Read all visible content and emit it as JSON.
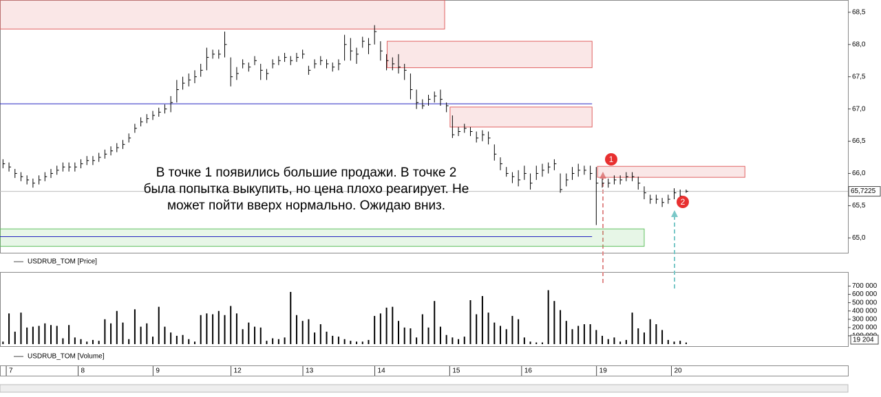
{
  "chart_data": [
    {
      "type": "hlc",
      "legend": "USDRUB_TOM [Price]",
      "xlim": [
        -0.5,
        141
      ],
      "ylim": [
        64.77,
        68.69
      ],
      "yticks": [
        {
          "value": 65.0,
          "label": "65,0"
        },
        {
          "value": 65.5,
          "label": "65,5"
        },
        {
          "value": 66.0,
          "label": "66,0"
        },
        {
          "value": 66.5,
          "label": "66,5"
        },
        {
          "value": 67.0,
          "label": "67,0"
        },
        {
          "value": 67.5,
          "label": "67,5"
        },
        {
          "value": 68.0,
          "label": "68,0"
        },
        {
          "value": 68.5,
          "label": "68,5"
        }
      ],
      "color": "#000000",
      "close": [
        66.15,
        66.1,
        66.0,
        65.95,
        65.9,
        65.85,
        65.9,
        65.95,
        66.0,
        66.05,
        66.1,
        66.1,
        66.1,
        66.15,
        66.2,
        66.2,
        66.25,
        66.3,
        66.35,
        66.4,
        66.45,
        66.55,
        66.7,
        66.8,
        66.85,
        66.9,
        66.95,
        67.0,
        67.1,
        67.3,
        67.4,
        67.45,
        67.5,
        67.6,
        67.8,
        67.85,
        67.85,
        68.0,
        67.5,
        67.55,
        67.7,
        67.65,
        67.75,
        67.6,
        67.55,
        67.7,
        67.75,
        67.8,
        67.75,
        67.8,
        67.85,
        67.6,
        67.7,
        67.75,
        67.7,
        67.65,
        67.7,
        68.0,
        67.9,
        67.85,
        68.05,
        68.0,
        68.2,
        67.9,
        67.75,
        67.7,
        67.65,
        67.6,
        67.3,
        67.1,
        67.05,
        67.15,
        67.2,
        67.15,
        67.05,
        66.6,
        66.65,
        66.7,
        66.65,
        66.55,
        66.6,
        66.55,
        66.3,
        66.15,
        66.0,
        65.95,
        65.9,
        66.0,
        65.85,
        66.0,
        66.05,
        66.1,
        66.15,
        65.75,
        65.9,
        66.0,
        66.05,
        66.05,
        66.0,
        65.85,
        65.85,
        65.85,
        65.9,
        65.9,
        65.95,
        65.95,
        65.85,
        65.7,
        65.6,
        65.6,
        65.55,
        65.6,
        65.7,
        65.65,
        65.7225
      ],
      "high": [
        66.22,
        66.17,
        66.07,
        66.02,
        65.97,
        65.92,
        65.97,
        66.02,
        66.07,
        66.12,
        66.17,
        66.17,
        66.17,
        66.22,
        66.27,
        66.27,
        66.32,
        66.37,
        66.42,
        66.47,
        66.52,
        66.62,
        66.77,
        66.87,
        66.92,
        66.97,
        67.02,
        67.07,
        67.2,
        67.45,
        67.5,
        67.55,
        67.6,
        67.7,
        67.95,
        67.92,
        67.92,
        68.2,
        67.8,
        67.65,
        67.77,
        67.72,
        67.82,
        67.7,
        67.62,
        67.77,
        67.82,
        67.87,
        67.82,
        67.87,
        67.92,
        67.67,
        67.77,
        67.82,
        67.77,
        67.72,
        67.77,
        68.15,
        68.1,
        67.95,
        68.12,
        68.1,
        68.3,
        68.05,
        67.85,
        67.8,
        67.85,
        67.7,
        67.55,
        67.3,
        67.15,
        67.22,
        67.27,
        67.3,
        67.1,
        66.9,
        66.72,
        66.77,
        66.72,
        66.65,
        66.67,
        66.65,
        66.45,
        66.25,
        66.1,
        66.02,
        66.05,
        66.12,
        66.0,
        66.12,
        66.15,
        66.17,
        66.22,
        66.0,
        66.0,
        66.1,
        66.15,
        66.12,
        66.12,
        66.1,
        65.92,
        65.92,
        65.97,
        65.97,
        66.02,
        66.02,
        65.95,
        65.8,
        65.67,
        65.67,
        65.62,
        65.67,
        65.77,
        65.75,
        65.75
      ],
      "low": [
        66.08,
        66.03,
        65.93,
        65.88,
        65.83,
        65.78,
        65.83,
        65.88,
        65.93,
        65.98,
        66.03,
        66.03,
        66.03,
        66.08,
        66.13,
        66.13,
        66.18,
        66.23,
        66.28,
        66.33,
        66.38,
        66.48,
        66.63,
        66.73,
        66.78,
        66.83,
        66.88,
        66.93,
        66.95,
        67.1,
        67.3,
        67.35,
        67.4,
        67.5,
        67.6,
        67.78,
        67.78,
        67.8,
        67.35,
        67.45,
        67.63,
        67.58,
        67.68,
        67.45,
        67.45,
        67.63,
        67.68,
        67.73,
        67.68,
        67.73,
        67.78,
        67.53,
        67.63,
        67.68,
        67.63,
        67.58,
        67.6,
        67.75,
        67.75,
        67.7,
        67.95,
        67.85,
        68.0,
        67.75,
        67.6,
        67.6,
        67.55,
        67.45,
        67.15,
        67.0,
        67.0,
        67.05,
        67.1,
        67.05,
        66.95,
        66.55,
        66.58,
        66.63,
        66.58,
        66.48,
        66.5,
        66.45,
        66.2,
        66.05,
        65.95,
        65.85,
        65.8,
        65.9,
        65.75,
        65.9,
        65.95,
        66.0,
        66.05,
        65.7,
        65.8,
        65.9,
        65.95,
        65.98,
        65.9,
        65.2,
        65.78,
        65.78,
        65.83,
        65.83,
        65.88,
        65.88,
        65.75,
        65.6,
        65.53,
        65.53,
        65.48,
        65.53,
        65.6,
        65.55,
        65.7
      ],
      "last_price_label": "65,7225",
      "zones": [
        {
          "x": [
            -0.5,
            73.7
          ],
          "y": [
            68.24,
            68.69
          ],
          "color": "#e06060"
        },
        {
          "x": [
            64.1,
            98.3
          ],
          "y": [
            67.64,
            68.05
          ],
          "color": "#e06060"
        },
        {
          "x": [
            74.6,
            98.3
          ],
          "y": [
            66.72,
            67.03
          ],
          "color": "#e06060"
        },
        {
          "x": [
            99.2,
            123.8
          ],
          "y": [
            65.94,
            66.11
          ],
          "color": "#e06060"
        },
        {
          "x": [
            -0.5,
            107
          ],
          "y": [
            64.87,
            65.14
          ],
          "color": "#60c060"
        }
      ],
      "levels": [
        {
          "y": 67.08,
          "x": [
            -0.5,
            98.3
          ],
          "color": "#2020c0"
        },
        {
          "y": 65.02,
          "x": [
            -0.5,
            98.3
          ],
          "color": "#2020c0"
        }
      ],
      "annotation": [
        "В точке 1 появились большие продажи. В точке 2",
        "была попытка выкупить, но цена плохо реагирует. Не",
        "может пойти вверх нормально. Ожидаю вниз."
      ],
      "markers": [
        "1",
        "2"
      ]
    },
    {
      "type": "bar",
      "legend": "USDRUB_TOM [Volume]",
      "xlim": [
        -0.5,
        141
      ],
      "ylim": [
        -25000,
        870000
      ],
      "color": "#000000",
      "yticks": [
        {
          "value": 100000,
          "label": "100 000"
        },
        {
          "value": 200000,
          "label": "200 000"
        },
        {
          "value": 300000,
          "label": "300 000"
        },
        {
          "value": 400000,
          "label": "400 000"
        },
        {
          "value": 500000,
          "label": "500 000"
        },
        {
          "value": 600000,
          "label": "600 000"
        },
        {
          "value": 700000,
          "label": "700 000"
        }
      ],
      "values": [
        30000,
        370000,
        150000,
        380000,
        200000,
        210000,
        220000,
        250000,
        230000,
        220000,
        70000,
        230000,
        80000,
        60000,
        30000,
        50000,
        40000,
        300000,
        250000,
        400000,
        260000,
        60000,
        420000,
        210000,
        250000,
        90000,
        450000,
        210000,
        140000,
        100000,
        110000,
        60000,
        30000,
        350000,
        370000,
        360000,
        400000,
        350000,
        460000,
        370000,
        180000,
        260000,
        210000,
        200000,
        40000,
        70000,
        60000,
        80000,
        630000,
        350000,
        280000,
        300000,
        140000,
        240000,
        150000,
        100000,
        90000,
        60000,
        40000,
        30000,
        30000,
        50000,
        340000,
        370000,
        440000,
        450000,
        280000,
        200000,
        190000,
        80000,
        360000,
        200000,
        520000,
        210000,
        110000,
        80000,
        60000,
        90000,
        530000,
        360000,
        580000,
        380000,
        260000,
        220000,
        180000,
        340000,
        300000,
        80000,
        30000,
        20000,
        20000,
        650000,
        520000,
        410000,
        280000,
        180000,
        220000,
        240000,
        240000,
        170000,
        100000,
        60000,
        80000,
        30000,
        50000,
        380000,
        190000,
        140000,
        300000,
        240000,
        170000,
        50000,
        30000,
        40000,
        19204
      ],
      "last_value_label": "19 204",
      "xticks": [
        {
          "value": 1,
          "label": "7"
        },
        {
          "value": 13,
          "label": "8"
        },
        {
          "value": 25.5,
          "label": "9"
        },
        {
          "value": 38.5,
          "label": "12"
        },
        {
          "value": 50.5,
          "label": "13"
        },
        {
          "value": 62.5,
          "label": "14"
        },
        {
          "value": 75,
          "label": "15"
        },
        {
          "value": 87,
          "label": "16"
        },
        {
          "value": 99.5,
          "label": "19"
        },
        {
          "value": 112,
          "label": "20"
        }
      ]
    }
  ]
}
